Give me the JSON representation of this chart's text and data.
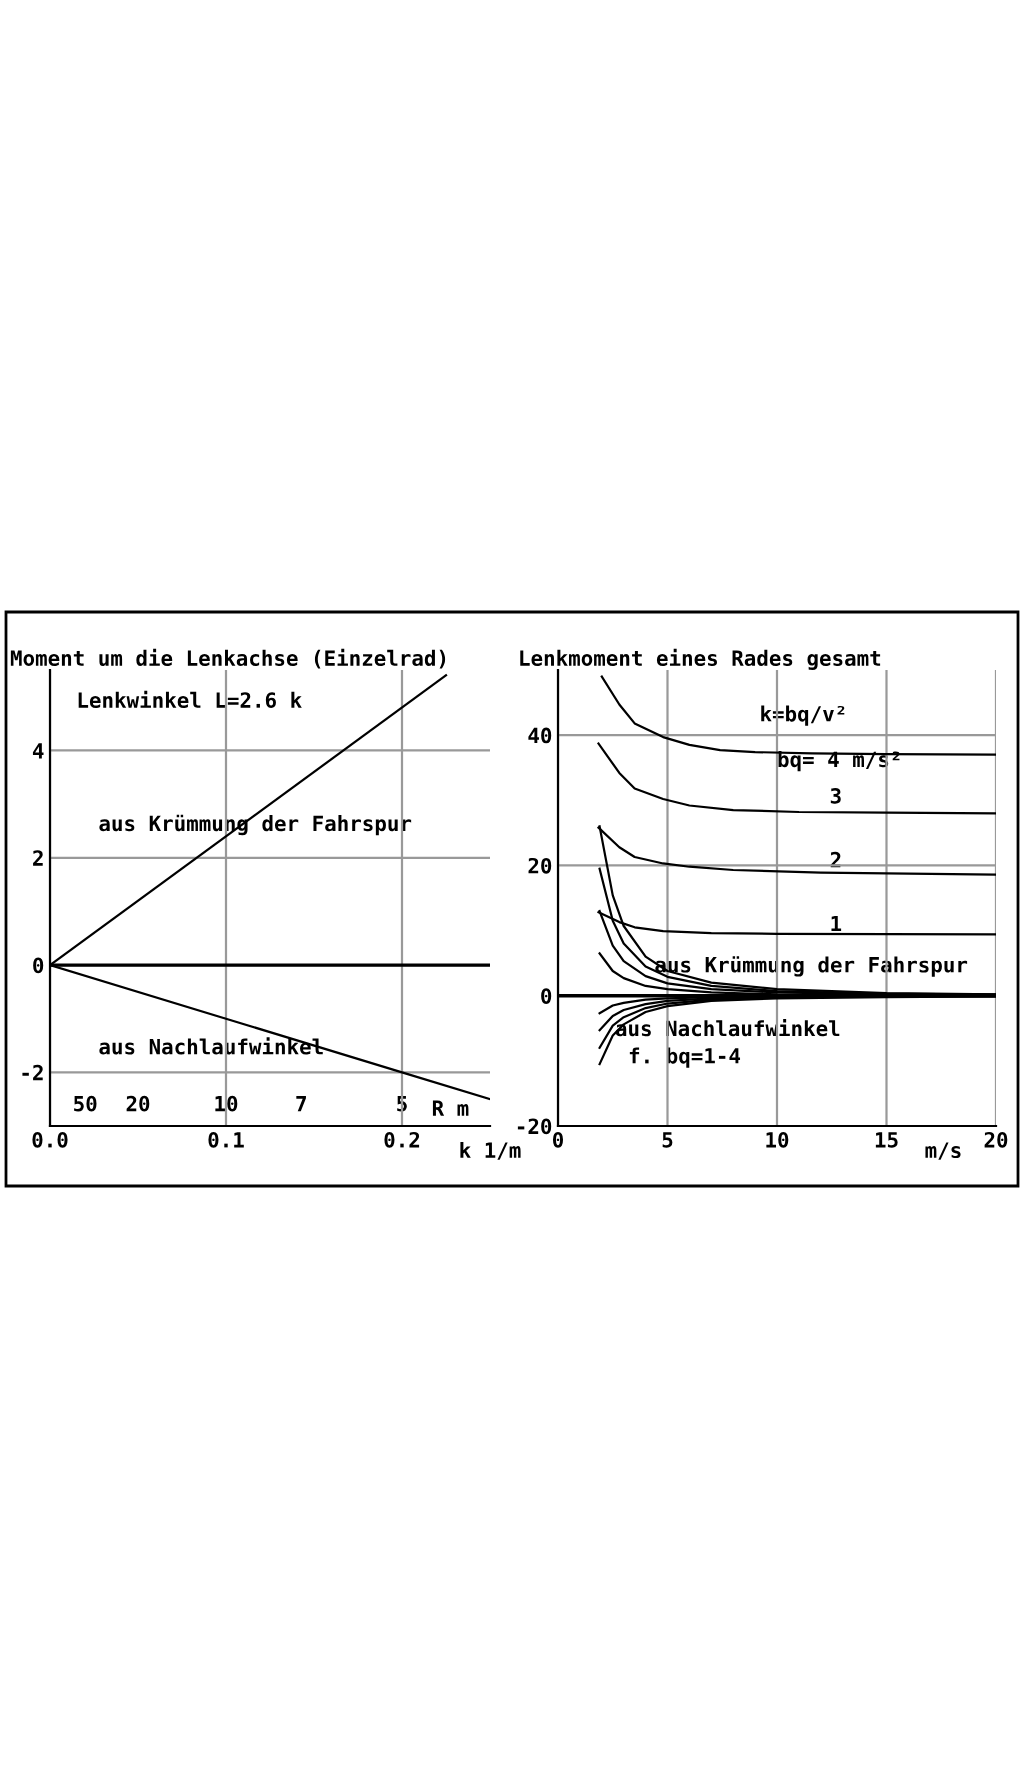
{
  "chart_data": [
    {
      "type": "line",
      "title": "Moment um die Lenkachse (Einzelrad)",
      "xlabel": "k 1/m",
      "xlim": [
        0,
        0.25
      ],
      "xticks": [
        {
          "value": 0,
          "label": "0.0"
        },
        0.1,
        0.2
      ],
      "ylim": [
        -3,
        5.5
      ],
      "yticks": [
        -2,
        0,
        2,
        4
      ],
      "grid": true,
      "legend": false,
      "marker": "none",
      "line_style": "solid",
      "ref_lines": [
        {
          "axis": "y",
          "value": 0,
          "color": "#000000"
        }
      ],
      "series": [
        {
          "color": "#000000",
          "x": [
            0,
            0.225
          ],
          "values": [
            0,
            5.4
          ]
        },
        {
          "color": "#000000",
          "x": [
            0,
            0.1,
            0.2,
            0.25
          ],
          "values": [
            0,
            -1.0,
            -2.0,
            -2.5
          ]
        }
      ],
      "annotations": [
        "Lenkwinkel L=2.6 k",
        "aus Krümmung der Fahrspur",
        "aus Nachlaufwinkel",
        "50",
        "20",
        "10",
        "7",
        "5",
        "R m"
      ]
    },
    {
      "type": "line",
      "title": "Lenkmoment eines Rades gesamt",
      "xlabel": "m/s",
      "xlim": [
        0,
        20
      ],
      "xticks": [
        0,
        5,
        10,
        15,
        20
      ],
      "ylim": [
        -20,
        50
      ],
      "yticks": [
        -20,
        0,
        20,
        40
      ],
      "grid": true,
      "legend": false,
      "marker": "none",
      "line_style": "solid",
      "ref_lines": [
        {
          "axis": "y",
          "value": 0,
          "color": "#000000"
        }
      ],
      "series": [
        {
          "color": "#000000",
          "x": [
            2.0,
            2.8,
            3.5,
            4.8,
            6,
            7.4,
            9,
            11.6,
            15,
            20
          ],
          "values": [
            49,
            44.7,
            41.8,
            39.7,
            38.5,
            37.7,
            37.4,
            37.2,
            37.1,
            37.0
          ]
        },
        {
          "color": "#000000",
          "x": [
            1.85,
            2.8,
            3.5,
            4.8,
            6,
            8,
            11,
            15,
            20
          ],
          "values": [
            38.7,
            34.2,
            31.8,
            30.2,
            29.2,
            28.5,
            28.2,
            28.1,
            28.0
          ]
        },
        {
          "color": "#000000",
          "x": [
            1.85,
            2.8,
            3.5,
            4.8,
            6,
            8,
            12,
            20
          ],
          "values": [
            25.8,
            22.8,
            21.3,
            20.3,
            19.8,
            19.3,
            18.9,
            18.6
          ]
        },
        {
          "color": "#000000",
          "x": [
            1.85,
            2.8,
            3.5,
            4.8,
            7,
            10,
            20
          ],
          "values": [
            12.8,
            11.3,
            10.5,
            9.9,
            9.6,
            9.5,
            9.4
          ]
        },
        {
          "color": "#000000",
          "x": [
            1.9,
            2.5,
            3,
            4,
            5,
            7,
            10,
            15,
            20
          ],
          "values": [
            26,
            15.4,
            10.7,
            6,
            3.8,
            2,
            1,
            0.4,
            0.2
          ]
        },
        {
          "color": "#000000",
          "x": [
            1.9,
            2.5,
            3,
            4,
            5,
            7,
            10,
            15,
            20
          ],
          "values": [
            19.5,
            11.5,
            8,
            4.5,
            2.9,
            1.5,
            0.7,
            0.3,
            0.2
          ]
        },
        {
          "color": "#000000",
          "x": [
            1.9,
            2.5,
            3,
            4,
            5,
            7,
            10,
            15,
            20
          ],
          "values": [
            13,
            7.7,
            5.3,
            3,
            1.9,
            1,
            0.5,
            0.2,
            0.1
          ]
        },
        {
          "color": "#000000",
          "x": [
            1.9,
            2.5,
            3,
            4,
            5,
            7,
            10,
            15,
            20
          ],
          "values": [
            6.5,
            3.8,
            2.7,
            1.5,
            1,
            0.5,
            0.2,
            0.1,
            0.1
          ]
        },
        {
          "color": "#000000",
          "x": [
            1.9,
            2.5,
            3,
            4,
            5,
            7,
            10,
            15,
            20
          ],
          "values": [
            -10.5,
            -6.1,
            -4.4,
            -2.5,
            -1.6,
            -0.8,
            -0.4,
            -0.2,
            -0.1
          ]
        },
        {
          "color": "#000000",
          "x": [
            1.9,
            2.5,
            3,
            4,
            5,
            7,
            10,
            15,
            20
          ],
          "values": [
            -8,
            -4.6,
            -3.3,
            -1.9,
            -1.2,
            -0.6,
            -0.3,
            -0.1,
            -0.1
          ]
        },
        {
          "color": "#000000",
          "x": [
            1.9,
            2.5,
            3,
            4,
            5,
            7,
            10,
            15,
            20
          ],
          "values": [
            -5.3,
            -3.1,
            -2.2,
            -1.3,
            -0.8,
            -0.4,
            -0.2,
            -0.1,
            0
          ]
        },
        {
          "color": "#000000",
          "x": [
            1.9,
            2.5,
            3,
            4,
            5,
            7,
            10,
            15,
            20
          ],
          "values": [
            -2.7,
            -1.5,
            -1.1,
            -0.6,
            -0.4,
            -0.2,
            -0.1,
            0,
            0
          ]
        }
      ],
      "annotations": [
        "k=bq/v²",
        "bq= 4 m/s²",
        "3",
        "2",
        "1",
        "aus Krümmung der Fahrspur",
        "aus Nachlaufwinkel",
        "f. bq=1-4"
      ]
    }
  ]
}
